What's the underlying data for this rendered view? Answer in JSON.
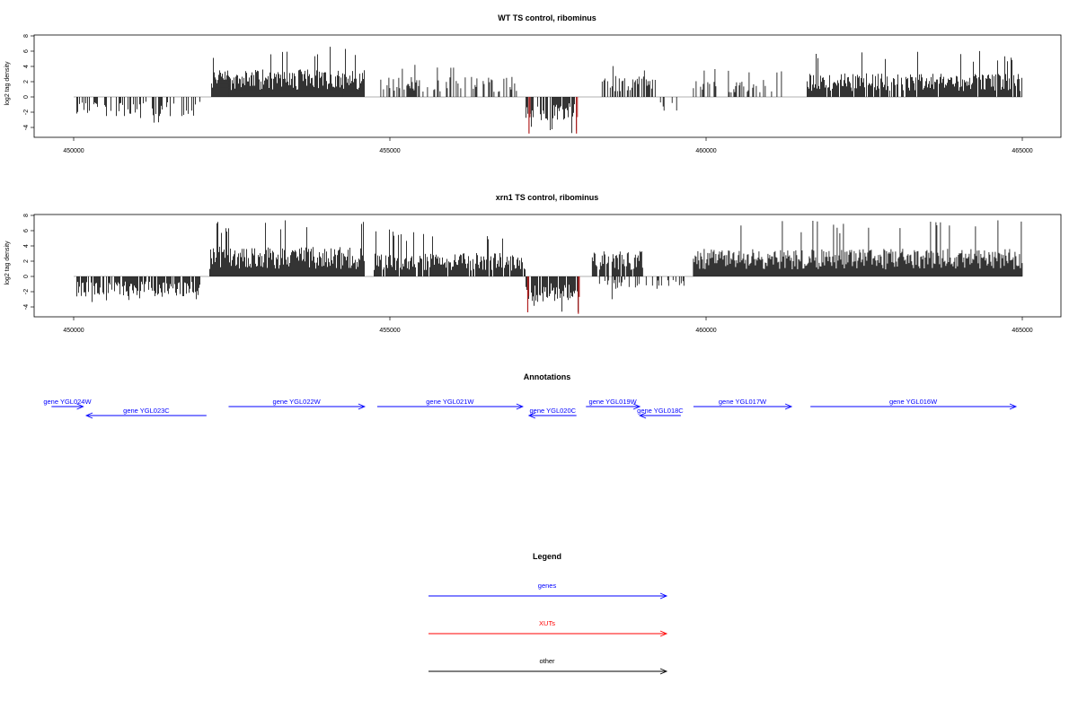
{
  "chart_data": [
    {
      "type": "bar",
      "title": "WT TS control, ribominus",
      "ylabel": "log2 tag density",
      "xlabel": "",
      "xlim": [
        450000,
        465000
      ],
      "ylim": [
        -5,
        8
      ],
      "xticks": [
        450000,
        455000,
        460000,
        465000
      ],
      "yticks": [
        -4,
        -2,
        0,
        2,
        4,
        6,
        8
      ],
      "bar_color": "#000000",
      "highlight_color": "#b22222",
      "regions": [
        {
          "strand": "minus",
          "start": 450050,
          "end": 452000,
          "mean": -1.8,
          "max": -3.6,
          "density": 0.35
        },
        {
          "strand": "plus",
          "start": 452180,
          "end": 454600,
          "mean": 2.6,
          "max": 6.8,
          "density": 1.0
        },
        {
          "strand": "plus",
          "start": 454800,
          "end": 457050,
          "mean": 1.9,
          "max": 4.5,
          "density": 0.45
        },
        {
          "strand": "minus",
          "start": 457150,
          "end": 457950,
          "mean": -2.2,
          "max": -4.8,
          "density": 0.7
        },
        {
          "strand": "plus",
          "start": 458300,
          "end": 459200,
          "mean": 2.0,
          "max": 4.1,
          "density": 0.6
        },
        {
          "strand": "minus",
          "start": 459250,
          "end": 459600,
          "mean": -1.5,
          "max": -2.6,
          "density": 0.3
        },
        {
          "strand": "plus",
          "start": 459800,
          "end": 461200,
          "mean": 1.6,
          "max": 4.0,
          "density": 0.35
        },
        {
          "strand": "plus",
          "start": 461600,
          "end": 465000,
          "mean": 2.2,
          "max": 6.1,
          "density": 0.9
        }
      ],
      "highlight_peaks": [
        {
          "x": 457200,
          "y": -4.8
        },
        {
          "x": 457950,
          "y": -4.8
        }
      ]
    },
    {
      "type": "bar",
      "title": "xrn1 TS control, ribominus",
      "ylabel": "log2 tag density",
      "xlabel": "",
      "xlim": [
        450000,
        465000
      ],
      "ylim": [
        -5,
        8
      ],
      "xticks": [
        450000,
        455000,
        460000,
        465000
      ],
      "yticks": [
        -4,
        -2,
        0,
        2,
        4,
        6,
        8
      ],
      "bar_color": "#000000",
      "highlight_color": "#b22222",
      "regions": [
        {
          "strand": "minus",
          "start": 450050,
          "end": 452000,
          "mean": -1.9,
          "max": -3.4,
          "density": 0.8
        },
        {
          "strand": "plus",
          "start": 452150,
          "end": 454600,
          "mean": 2.8,
          "max": 7.6,
          "density": 1.0
        },
        {
          "strand": "plus",
          "start": 454750,
          "end": 457150,
          "mean": 2.2,
          "max": 6.2,
          "density": 0.85
        },
        {
          "strand": "minus",
          "start": 457150,
          "end": 458000,
          "mean": -2.4,
          "max": -4.8,
          "density": 0.9
        },
        {
          "strand": "plus",
          "start": 458200,
          "end": 459000,
          "mean": 2.4,
          "max": 4.8,
          "density": 0.8
        },
        {
          "strand": "minus",
          "start": 458300,
          "end": 459700,
          "mean": -1.2,
          "max": -3.0,
          "density": 0.35
        },
        {
          "strand": "plus",
          "start": 459800,
          "end": 465000,
          "mean": 2.6,
          "max": 7.4,
          "density": 1.0
        }
      ],
      "highlight_peaks": [
        {
          "x": 457180,
          "y": -4.7
        },
        {
          "x": 457980,
          "y": -4.9
        }
      ]
    }
  ],
  "annotations": {
    "title": "Annotations",
    "color": "#0000ff",
    "genes": [
      {
        "name": "gene YGL024W",
        "start": 449650,
        "end": 450150,
        "strand": "+",
        "row": 0
      },
      {
        "name": "gene YGL023C",
        "start": 450200,
        "end": 452100,
        "strand": "-",
        "row": 1
      },
      {
        "name": "gene YGL022W",
        "start": 452450,
        "end": 454600,
        "strand": "+",
        "row": 0
      },
      {
        "name": "gene YGL021W",
        "start": 454800,
        "end": 457100,
        "strand": "+",
        "row": 0
      },
      {
        "name": "gene YGL020C",
        "start": 457200,
        "end": 457950,
        "strand": "-",
        "row": 1
      },
      {
        "name": "gene YGL019W",
        "start": 458100,
        "end": 458950,
        "strand": "+",
        "row": 0
      },
      {
        "name": "gene YGL018C",
        "start": 458950,
        "end": 459600,
        "strand": "-",
        "row": 1
      },
      {
        "name": "gene YGL017W",
        "start": 459800,
        "end": 461350,
        "strand": "+",
        "row": 0
      },
      {
        "name": "gene YGL016W",
        "start": 461650,
        "end": 464900,
        "strand": "+",
        "row": 0
      }
    ]
  },
  "legend": {
    "title": "Legend",
    "items": [
      {
        "label": "genes",
        "color": "#0000ff"
      },
      {
        "label": "XUTs",
        "color": "#ff0000"
      },
      {
        "label": "other",
        "color": "#000000"
      }
    ]
  }
}
